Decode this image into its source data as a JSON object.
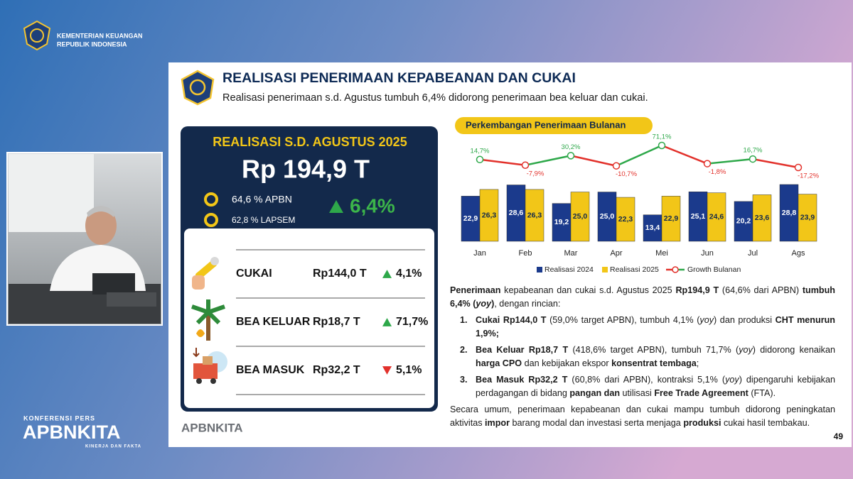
{
  "header": {
    "ministry": "KEMENTERIAN KEUANGAN",
    "country": "REPUBLIK INDONESIA"
  },
  "event": {
    "label": "KONFERENSI PERS",
    "brand": "APBNKITA",
    "tagline": "KINERJA DAN FAKTA"
  },
  "slide": {
    "title": "REALISASI PENERIMAAN KEPABEANAN DAN CUKAI",
    "subtitle": "Realisasi penerimaan s.d. Agustus tumbuh 6,4% didorong penerimaan bea keluar dan cukai.",
    "brand": "APBNKITA",
    "page": "49"
  },
  "summary": {
    "heading": "REALISASI S.D. AGUSTUS 2025",
    "total": "Rp 194,9 T",
    "apbn": "64,6 % APBN",
    "lapsem": "62,8 % LAPSEM",
    "growth": "6,4%",
    "trend": "up",
    "items": [
      {
        "name": "CUKAI",
        "amount": "Rp144,0 T",
        "growth": "4,1%",
        "trend": "up"
      },
      {
        "name": "BEA KELUAR",
        "amount": "Rp18,7 T",
        "growth": "71,7%",
        "trend": "up"
      },
      {
        "name": "BEA MASUK",
        "amount": "Rp32,2 T",
        "growth": "5,1%",
        "trend": "down"
      }
    ]
  },
  "chart_data": {
    "type": "bar",
    "title": "Perkembangan Penerimaan Bulanan",
    "categories": [
      "Jan",
      "Feb",
      "Mar",
      "Apr",
      "Mei",
      "Jun",
      "Jul",
      "Ags"
    ],
    "series": [
      {
        "name": "Realisasi 2024",
        "color": "#1b3a8c",
        "values": [
          22.9,
          28.6,
          19.2,
          25.0,
          13.4,
          25.1,
          20.2,
          28.8
        ],
        "value_labels": [
          "22,9",
          "28,6",
          "19,2",
          "25,0",
          "13,4",
          "25,1",
          "20,2",
          "28,8"
        ]
      },
      {
        "name": "Realisasi 2025",
        "color": "#f2c618",
        "values": [
          26.3,
          26.3,
          25.0,
          22.3,
          22.9,
          24.6,
          23.6,
          23.9
        ],
        "value_labels": [
          "26,3",
          "26,3",
          "25,0",
          "22,3",
          "22,9",
          "24,6",
          "23,6",
          "23,9"
        ]
      },
      {
        "name": "Growth Bulanan",
        "type": "line",
        "rise_color": "#2ea84a",
        "fall_color": "#e2312b",
        "values": [
          14.7,
          -7.9,
          30.2,
          -10.7,
          71.1,
          -1.8,
          16.7,
          -17.2
        ],
        "value_labels": [
          "14,7%",
          "-7,9%",
          "30,2%",
          "-10,7%",
          "71,1%",
          "-1,8%",
          "16,7%",
          "-17,2%"
        ]
      }
    ]
  },
  "text": {
    "intro": [
      {
        "text": "Penerimaan",
        "bold": true
      },
      {
        "text": " kepabeanan dan cukai s.d. Agustus 2025 "
      },
      {
        "text": "Rp194,9 T",
        "bold": true
      },
      {
        "text": " (64,6% dari APBN) "
      },
      {
        "text": "tumbuh 6,4% (",
        "bold": true
      },
      {
        "text": "yoy",
        "bold": true,
        "italic": true
      },
      {
        "text": ")",
        "bold": true
      },
      {
        "text": ", dengan rincian:"
      }
    ],
    "list": [
      {
        "number": "1.",
        "runs": [
          {
            "text": "Cukai Rp144,0 T",
            "bold": true
          },
          {
            "text": " (59,0% target APBN), tumbuh 4,1% ("
          },
          {
            "text": "yoy",
            "italic": true
          },
          {
            "text": ") dan produksi "
          },
          {
            "text": "CHT menurun 1,9%;",
            "bold": true
          }
        ]
      },
      {
        "number": "2.",
        "runs": [
          {
            "text": "Bea Keluar Rp18,7 T",
            "bold": true
          },
          {
            "text": " (418,6% target APBN), tumbuh 71,7% ("
          },
          {
            "text": "yoy",
            "italic": true
          },
          {
            "text": ") didorong kenaikan "
          },
          {
            "text": "harga CPO",
            "bold": true
          },
          {
            "text": " dan kebijakan ekspor "
          },
          {
            "text": "konsentrat tembaga",
            "bold": true
          },
          {
            "text": ";"
          }
        ]
      },
      {
        "number": "3.",
        "runs": [
          {
            "text": "Bea Masuk Rp32,2 T",
            "bold": true
          },
          {
            "text": " (60,8% dari APBN), kontraksi 5,1% ("
          },
          {
            "text": "yoy",
            "italic": true
          },
          {
            "text": ") dipengaruhi kebijakan perdagangan di bidang "
          },
          {
            "text": "pangan dan",
            "bold": true
          },
          {
            "text": " utilisasi "
          },
          {
            "text": "Free Trade Agreement",
            "bold": true
          },
          {
            "text": " (FTA)."
          }
        ]
      }
    ],
    "closing": [
      {
        "text": "Secara umum, penerimaan kepabeanan dan cukai mampu tumbuh didorong peningkatan aktivitas "
      },
      {
        "text": "impor",
        "bold": true
      },
      {
        "text": " barang modal dan investasi serta menjaga "
      },
      {
        "text": "produksi",
        "bold": true
      },
      {
        "text": " cukai hasil tembakau."
      }
    ]
  }
}
